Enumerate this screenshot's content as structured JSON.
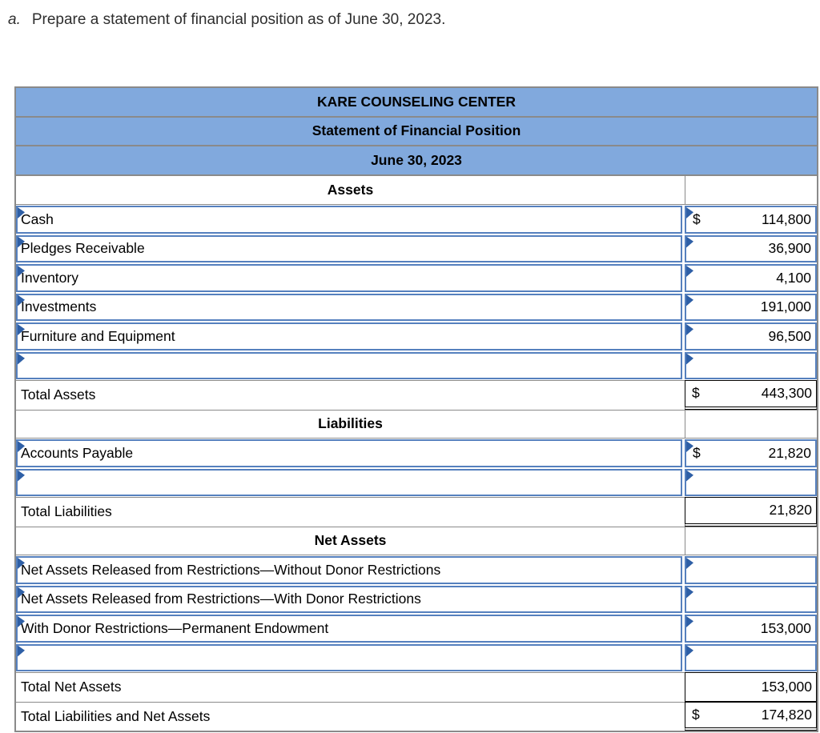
{
  "instruction": {
    "label": "a.",
    "text": "Prepare a statement of financial position as of June 30, 2023."
  },
  "header": {
    "org": "KARE COUNSELING CENTER",
    "statement": "Statement of Financial Position",
    "date": "June 30, 2023"
  },
  "rows": [
    {
      "type": "section",
      "label": "Assets"
    },
    {
      "type": "input",
      "label": "Cash",
      "dollar": "$",
      "value": "114,800"
    },
    {
      "type": "input",
      "label": "Pledges Receivable",
      "dollar": "",
      "value": "36,900"
    },
    {
      "type": "input",
      "label": "Inventory",
      "dollar": "",
      "value": "4,100"
    },
    {
      "type": "input",
      "label": "Investments",
      "dollar": "",
      "value": "191,000"
    },
    {
      "type": "input",
      "label": "Furniture and Equipment",
      "dollar": "",
      "value": "96,500"
    },
    {
      "type": "input",
      "label": "",
      "dollar": "",
      "value": ""
    },
    {
      "type": "total",
      "label": "Total Assets",
      "dollar": "$",
      "value": "443,300",
      "underline": "double"
    },
    {
      "type": "section",
      "label": "Liabilities"
    },
    {
      "type": "input",
      "label": "Accounts Payable",
      "dollar": "$",
      "value": "21,820"
    },
    {
      "type": "input",
      "label": "",
      "dollar": "",
      "value": ""
    },
    {
      "type": "total",
      "label": "Total Liabilities",
      "dollar": "",
      "value": "21,820",
      "underline": "double"
    },
    {
      "type": "section",
      "label": "Net Assets"
    },
    {
      "type": "input",
      "label": "Net Assets Released from Restrictions—Without Donor Restrictions",
      "dollar": "",
      "value": ""
    },
    {
      "type": "input",
      "label": "Net Assets Released from Restrictions—With Donor Restrictions",
      "dollar": "",
      "value": ""
    },
    {
      "type": "input",
      "label": "With Donor Restrictions—Permanent Endowment",
      "dollar": "",
      "value": "153,000"
    },
    {
      "type": "input",
      "label": "",
      "dollar": "",
      "value": ""
    },
    {
      "type": "total",
      "label": "Total Net Assets",
      "dollar": "",
      "value": "153,000",
      "underline": "single"
    },
    {
      "type": "total",
      "label": "Total Liabilities and Net Assets",
      "dollar": "$",
      "value": "174,820",
      "underline": "double"
    }
  ],
  "colors": {
    "header_blue": "#81a9dd",
    "input_border_blue": "#5580be",
    "marker_blue": "#2e5fa6",
    "grid_gray": "#8a8a8a",
    "total_border_black": "#000000"
  }
}
